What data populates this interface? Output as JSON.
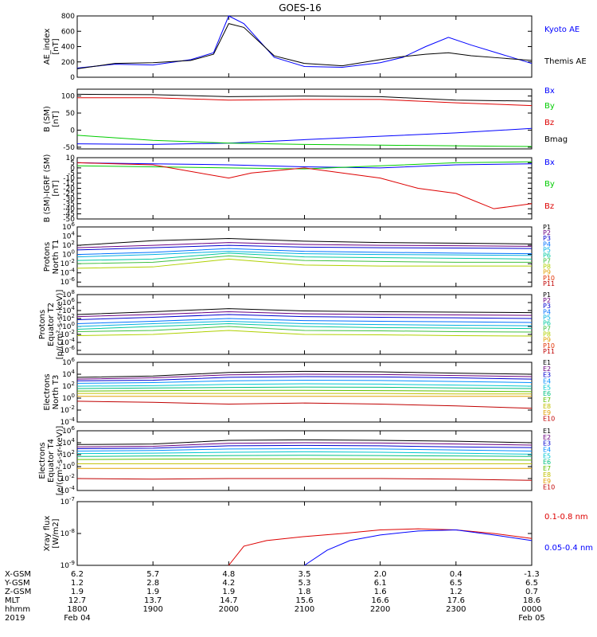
{
  "title": "GOES-16",
  "colors": {
    "black": "#000000",
    "blue": "#0000ff",
    "green": "#00cc00",
    "red": "#dd0000",
    "p_colors": [
      "#000000",
      "#6a0080",
      "#0000d0",
      "#0070ff",
      "#00b0e0",
      "#00c8a0",
      "#40c040",
      "#b0d000",
      "#e0a000",
      "#e03000",
      "#c00000"
    ],
    "e_colors": [
      "#000000",
      "#6a0080",
      "#0000d0",
      "#0090ff",
      "#00c8d0",
      "#00c080",
      "#60c000",
      "#c0c000",
      "#e0a000",
      "#c00000"
    ]
  },
  "chart_data": [
    {
      "type": "line",
      "id": "ae",
      "ylabel": [
        "AE_index",
        "[nT]"
      ],
      "ylim": [
        0,
        800
      ],
      "yticks": [
        "0",
        "200",
        "400",
        "600",
        "800"
      ],
      "series": [
        {
          "name": "Kyoto AE",
          "color": "#0000ff",
          "x": [
            18,
            18.5,
            19,
            19.5,
            19.8,
            20,
            20.2,
            20.6,
            21,
            21.5,
            22,
            22.3,
            22.6,
            22.9,
            23.2,
            23.6,
            24
          ],
          "y": [
            120,
            170,
            160,
            230,
            320,
            800,
            700,
            260,
            140,
            130,
            190,
            260,
            400,
            520,
            420,
            300,
            180
          ]
        },
        {
          "name": "Themis AE",
          "color": "#000000",
          "x": [
            18,
            18.5,
            19,
            19.5,
            19.8,
            20,
            20.2,
            20.6,
            21,
            21.5,
            22,
            22.3,
            22.6,
            22.9,
            23.2,
            23.6,
            24
          ],
          "y": [
            110,
            180,
            190,
            220,
            300,
            700,
            650,
            280,
            180,
            150,
            230,
            270,
            300,
            320,
            280,
            250,
            220
          ]
        }
      ]
    },
    {
      "type": "line",
      "id": "bsm",
      "ylabel": [
        "B (SM)",
        "[nT]"
      ],
      "ylim": [
        -55,
        120
      ],
      "yticks": [
        "-50",
        "0",
        "50",
        "100"
      ],
      "series": [
        {
          "name": "Bx",
          "color": "#0000ff",
          "x": [
            18,
            19,
            20,
            21,
            22,
            23,
            24
          ],
          "y": [
            -40,
            -42,
            -38,
            -28,
            -18,
            -8,
            5
          ]
        },
        {
          "name": "By",
          "color": "#00cc00",
          "x": [
            18,
            19,
            20,
            21,
            22,
            23,
            24
          ],
          "y": [
            -15,
            -30,
            -38,
            -42,
            -44,
            -46,
            -48
          ]
        },
        {
          "name": "Bz",
          "color": "#dd0000",
          "x": [
            18,
            19,
            20,
            21,
            22,
            23,
            24
          ],
          "y": [
            95,
            95,
            88,
            90,
            90,
            80,
            72
          ]
        },
        {
          "name": "Bmag",
          "color": "#000000",
          "x": [
            18,
            19,
            20,
            21,
            22,
            23,
            24
          ],
          "y": [
            105,
            104,
            98,
            100,
            98,
            88,
            85
          ]
        }
      ]
    },
    {
      "type": "line",
      "id": "bigrf",
      "ylabel": [
        "B (SM)-IGRF (SM)",
        "[nT]"
      ],
      "ylim": [
        -50,
        10
      ],
      "yticks": [
        "-50",
        "-45",
        "-40",
        "-35",
        "-30",
        "-25",
        "-20",
        "-15",
        "-10",
        "-5",
        "0",
        "5",
        "10"
      ],
      "series": [
        {
          "name": "Bx",
          "color": "#0000ff",
          "x": [
            18,
            19,
            20,
            21,
            22,
            23,
            24
          ],
          "y": [
            5,
            4,
            3,
            1,
            0,
            3,
            4
          ]
        },
        {
          "name": "By",
          "color": "#00cc00",
          "x": [
            18,
            19,
            20,
            21,
            22,
            23,
            24
          ],
          "y": [
            2,
            1,
            0,
            -1,
            2,
            5,
            6
          ]
        },
        {
          "name": "Bz",
          "color": "#dd0000",
          "x": [
            18,
            19,
            20,
            20.3,
            21,
            22,
            22.5,
            23,
            23.5,
            24
          ],
          "y": [
            5,
            3,
            -10,
            -5,
            0,
            -10,
            -20,
            -25,
            -40,
            -35
          ]
        }
      ]
    },
    {
      "type": "line",
      "id": "protons-north",
      "ylabel": [
        "Protons",
        "North T1"
      ],
      "yscale": "log",
      "ylim": [
        1e-07,
        1000000.0
      ],
      "yticks": [
        "10^-6",
        "10^-4",
        "10^-2",
        "10^0",
        "10^2",
        "10^4",
        "10^6"
      ],
      "legend": [
        "P1",
        "P2",
        "P3",
        "P4",
        "P5",
        "P6",
        "P7",
        "P8",
        "P9",
        "P10",
        "P11"
      ],
      "series": [
        {
          "name": "P1",
          "values": [
            100,
            1000,
            3000,
            800,
            400,
            300,
            200
          ]
        },
        {
          "name": "P2",
          "values": [
            30,
            100,
            400,
            150,
            100,
            80,
            60
          ]
        },
        {
          "name": "P3",
          "values": [
            10,
            30,
            100,
            40,
            30,
            25,
            20
          ]
        },
        {
          "name": "P4",
          "values": [
            1,
            3,
            20,
            5,
            3,
            2,
            1.5
          ]
        },
        {
          "name": "P5",
          "values": [
            0.3,
            1,
            5,
            1.5,
            1,
            0.8,
            0.6
          ]
        },
        {
          "name": "P6",
          "values": [
            0.05,
            0.1,
            2,
            0.3,
            0.2,
            0.15,
            0.1
          ]
        },
        {
          "name": "P7",
          "values": [
            0.01,
            0.02,
            0.5,
            0.05,
            0.03,
            0.02,
            0.02
          ]
        },
        {
          "name": "P8",
          "values": [
            0.001,
            0.002,
            0.1,
            0.005,
            0.003,
            0.003,
            0.003
          ]
        }
      ]
    },
    {
      "type": "line",
      "id": "protons-equator",
      "ylabel": [
        "Protons",
        "Equator T2",
        "[p/(cm²-s-sr-keV)]"
      ],
      "yscale": "log",
      "ylim": [
        1e-07,
        100000000.0
      ],
      "yticks": [
        "10^-6",
        "10^-4",
        "10^-2",
        "10^0",
        "10^2",
        "10^4",
        "10^6",
        "10^8"
      ],
      "legend": [
        "P1",
        "P2",
        "P3",
        "P4",
        "P5",
        "P6",
        "P7",
        "P8",
        "P9",
        "P10",
        "P11"
      ],
      "series": [
        {
          "name": "P1",
          "values": [
            1000,
            5000,
            30000,
            8000,
            5000,
            4000,
            3000
          ]
        },
        {
          "name": "P2",
          "values": [
            300,
            1000,
            5000,
            1500,
            1000,
            800,
            600
          ]
        },
        {
          "name": "P3",
          "values": [
            50,
            200,
            1000,
            300,
            200,
            150,
            100
          ]
        },
        {
          "name": "P4",
          "values": [
            5,
            20,
            100,
            30,
            20,
            15,
            10
          ]
        },
        {
          "name": "P5",
          "values": [
            1,
            5,
            20,
            5,
            3,
            2,
            1.5
          ]
        },
        {
          "name": "P6",
          "values": [
            0.2,
            1,
            5,
            1,
            0.5,
            0.4,
            0.3
          ]
        },
        {
          "name": "P7",
          "values": [
            0.05,
            0.1,
            1,
            0.1,
            0.08,
            0.05,
            0.04
          ]
        },
        {
          "name": "P8",
          "values": [
            0.005,
            0.01,
            0.1,
            0.01,
            0.008,
            0.005,
            0.004
          ]
        }
      ]
    },
    {
      "type": "line",
      "id": "electrons-north",
      "ylabel": [
        "Electrons",
        "North T3"
      ],
      "yscale": "log",
      "ylim": [
        0.0001,
        1000000.0
      ],
      "yticks": [
        "10^-4",
        "10^-2",
        "10^0",
        "10^2",
        "10^4",
        "10^6"
      ],
      "legend": [
        "E1",
        "E2",
        "E3",
        "E4",
        "E5",
        "E6",
        "E7",
        "E8",
        "E9",
        "E10"
      ],
      "series": [
        {
          "name": "E1",
          "values": [
            3000,
            5000,
            20000,
            30000,
            25000,
            15000,
            10000
          ]
        },
        {
          "name": "E2",
          "values": [
            1500,
            2500,
            8000,
            10000,
            9000,
            6000,
            4000
          ]
        },
        {
          "name": "E3",
          "values": [
            800,
            1000,
            3000,
            4000,
            3500,
            2500,
            1500
          ]
        },
        {
          "name": "E4",
          "values": [
            300,
            400,
            800,
            1000,
            900,
            600,
            400
          ]
        },
        {
          "name": "E5",
          "values": [
            100,
            120,
            200,
            250,
            220,
            150,
            100
          ]
        },
        {
          "name": "E6",
          "values": [
            40,
            50,
            60,
            70,
            65,
            50,
            40
          ]
        },
        {
          "name": "E7",
          "values": [
            15,
            18,
            20,
            20,
            18,
            15,
            12
          ]
        },
        {
          "name": "E8",
          "values": [
            6,
            6,
            6,
            6,
            6,
            5,
            5
          ]
        },
        {
          "name": "E9",
          "values": [
            2,
            2,
            2,
            2,
            2,
            2,
            2
          ]
        },
        {
          "name": "E10",
          "values": [
            0.3,
            0.2,
            0.1,
            0.15,
            0.1,
            0.05,
            0.02
          ]
        }
      ]
    },
    {
      "type": "line",
      "id": "electrons-equator",
      "ylabel": [
        "Electrons",
        "Equator T4",
        "[e/(cm²-s-sr-keV)]"
      ],
      "yscale": "log",
      "ylim": [
        0.0001,
        1000000.0
      ],
      "yticks": [
        "10^-4",
        "10^-2",
        "10^0",
        "10^2",
        "10^4",
        "10^6"
      ],
      "legend": [
        "E1",
        "E2",
        "E3",
        "E4",
        "E5",
        "E6",
        "E7",
        "E8",
        "E9",
        "E10"
      ],
      "series": [
        {
          "name": "E1",
          "values": [
            5000,
            6000,
            25000,
            30000,
            25000,
            18000,
            10000
          ]
        },
        {
          "name": "E2",
          "values": [
            2000,
            2500,
            8000,
            10000,
            9000,
            6000,
            4000
          ]
        },
        {
          "name": "E3",
          "values": [
            1000,
            1200,
            3000,
            3500,
            3000,
            2000,
            1500
          ]
        },
        {
          "name": "E4",
          "values": [
            400,
            500,
            900,
            1000,
            900,
            600,
            400
          ]
        },
        {
          "name": "E5",
          "values": [
            150,
            180,
            250,
            300,
            250,
            180,
            120
          ]
        },
        {
          "name": "E6",
          "values": [
            50,
            60,
            70,
            80,
            70,
            60,
            50
          ]
        },
        {
          "name": "E7",
          "values": [
            15,
            18,
            20,
            20,
            18,
            15,
            12
          ]
        },
        {
          "name": "E8",
          "values": [
            3,
            3,
            3,
            3,
            3,
            3,
            3
          ]
        },
        {
          "name": "E9",
          "values": [
            0.5,
            0.5,
            0.5,
            0.5,
            0.5,
            0.5,
            0.5
          ]
        },
        {
          "name": "E10",
          "values": [
            0.01,
            0.008,
            0.01,
            0.01,
            0.01,
            0.008,
            0.005
          ]
        }
      ]
    },
    {
      "type": "line",
      "id": "xray",
      "ylabel": [
        "Xray flux",
        "[W/m2]"
      ],
      "yscale": "log",
      "ylim": [
        1e-09,
        1e-07
      ],
      "yticks": [
        "10^-9",
        "10^-8",
        "10^-7"
      ],
      "series": [
        {
          "name": "0.1-0.8 nm",
          "color": "#dd0000",
          "x": [
            20,
            20.2,
            20.5,
            21,
            21.5,
            22,
            22.5,
            23,
            23.5,
            24
          ],
          "y": [
            1e-09,
            4e-09,
            6e-09,
            8e-09,
            1e-08,
            1.3e-08,
            1.4e-08,
            1.3e-08,
            1e-08,
            7e-09
          ]
        },
        {
          "name": "0.05-0.4 nm",
          "color": "#0000ff",
          "x": [
            21,
            21.3,
            21.6,
            22,
            22.5,
            23,
            23.5,
            24
          ],
          "y": [
            1e-09,
            3e-09,
            6e-09,
            9e-09,
            1.2e-08,
            1.3e-08,
            9e-09,
            6e-09
          ]
        }
      ]
    }
  ],
  "xaxis": {
    "ticks": [
      "1800",
      "1900",
      "2000",
      "2100",
      "2200",
      "2300",
      "0000"
    ],
    "rows": [
      {
        "label": "X-GSM",
        "values": [
          "6.2",
          "5.7",
          "4.8",
          "3.5",
          "2.0",
          "0.4",
          "-1.3"
        ]
      },
      {
        "label": "Y-GSM",
        "values": [
          "1.2",
          "2.8",
          "4.2",
          "5.3",
          "6.1",
          "6.5",
          "6.5"
        ]
      },
      {
        "label": "Z-GSM",
        "values": [
          "1.9",
          "1.9",
          "1.9",
          "1.8",
          "1.6",
          "1.2",
          "0.7"
        ]
      },
      {
        "label": "MLT",
        "values": [
          "12.7",
          "13.7",
          "14.7",
          "15.6",
          "16.6",
          "17.6",
          "18.6"
        ]
      },
      {
        "label": "hhmm",
        "values": [
          "1800",
          "1900",
          "2000",
          "2100",
          "2200",
          "2300",
          "0000"
        ]
      }
    ],
    "year": "2019",
    "date_start": "Feb 04",
    "date_end": "Feb 05"
  }
}
